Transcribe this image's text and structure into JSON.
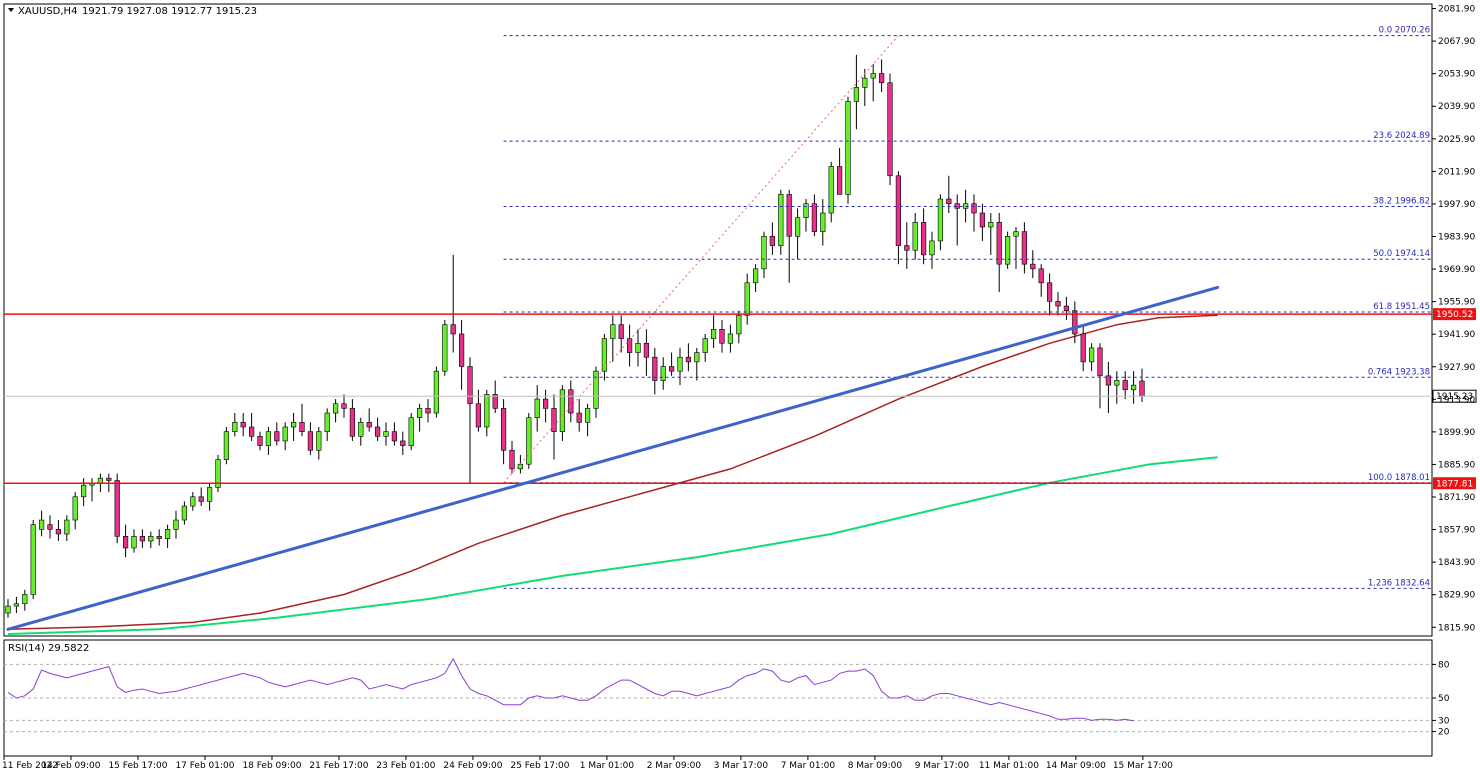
{
  "header": {
    "symbol": "XAUUSD,H4",
    "ohlc": "1921.79 1927.08 1912.77 1915.23"
  },
  "rsi_label": "RSI(14) 29.5822",
  "colors": {
    "bull": "#66ee2a",
    "bear": "#e7308a",
    "wick": "#000000",
    "trendline": "#3d63cc",
    "hline": "#ee1111",
    "fib": "#2b2bb4",
    "ma_fast": "#aa2222",
    "ma_slow": "#11dd77",
    "rsi": "#8a3fd0"
  },
  "chart_data": {
    "type": "candlestick",
    "x_tick_labels": [
      "11 Feb 2022",
      "14 Feb 09:00",
      "15 Feb 17:00",
      "17 Feb 01:00",
      "18 Feb 09:00",
      "21 Feb 17:00",
      "23 Feb 01:00",
      "24 Feb 09:00",
      "25 Feb 17:00",
      "1 Mar 01:00",
      "2 Mar 09:00",
      "3 Mar 17:00",
      "7 Mar 01:00",
      "8 Mar 09:00",
      "9 Mar 17:00",
      "11 Mar 01:00",
      "14 Mar 09:00",
      "15 Mar 17:00"
    ],
    "y_tick_labels": [
      "2081.90",
      "2067.90",
      "2053.90",
      "2039.90",
      "2025.90",
      "2011.90",
      "1997.90",
      "1983.90",
      "1969.90",
      "1955.90",
      "1941.90",
      "1927.90",
      "1913.90",
      "1899.90",
      "1885.90",
      "1871.90",
      "1857.90",
      "1843.90",
      "1829.90",
      "1815.90"
    ],
    "ylim": [
      1813,
      2083
    ],
    "candles": [
      [
        1822,
        1828,
        1820,
        1825
      ],
      [
        1825,
        1829,
        1822,
        1826
      ],
      [
        1826,
        1832,
        1823,
        1830
      ],
      [
        1830,
        1862,
        1828,
        1860
      ],
      [
        1858,
        1866,
        1855,
        1862
      ],
      [
        1860,
        1864,
        1854,
        1858
      ],
      [
        1858,
        1862,
        1853,
        1856
      ],
      [
        1856,
        1864,
        1853,
        1862
      ],
      [
        1862,
        1874,
        1858,
        1872
      ],
      [
        1872,
        1880,
        1868,
        1877
      ],
      [
        1877,
        1880,
        1870,
        1878
      ],
      [
        1878,
        1882,
        1874,
        1880
      ],
      [
        1880,
        1882,
        1874,
        1879
      ],
      [
        1879,
        1882,
        1852,
        1855
      ],
      [
        1855,
        1860,
        1846,
        1850
      ],
      [
        1850,
        1858,
        1848,
        1855
      ],
      [
        1855,
        1858,
        1850,
        1853
      ],
      [
        1853,
        1857,
        1850,
        1855
      ],
      [
        1855,
        1858,
        1851,
        1854
      ],
      [
        1854,
        1860,
        1850,
        1858
      ],
      [
        1858,
        1866,
        1854,
        1862
      ],
      [
        1862,
        1870,
        1860,
        1868
      ],
      [
        1868,
        1874,
        1866,
        1872
      ],
      [
        1872,
        1876,
        1868,
        1870
      ],
      [
        1870,
        1878,
        1866,
        1876
      ],
      [
        1876,
        1890,
        1874,
        1888
      ],
      [
        1888,
        1902,
        1886,
        1900
      ],
      [
        1900,
        1908,
        1898,
        1904
      ],
      [
        1904,
        1908,
        1898,
        1902
      ],
      [
        1902,
        1908,
        1896,
        1898
      ],
      [
        1898,
        1900,
        1892,
        1894
      ],
      [
        1894,
        1902,
        1890,
        1900
      ],
      [
        1900,
        1904,
        1894,
        1896
      ],
      [
        1896,
        1904,
        1892,
        1902
      ],
      [
        1902,
        1908,
        1896,
        1904
      ],
      [
        1904,
        1912,
        1898,
        1900
      ],
      [
        1900,
        1904,
        1890,
        1892
      ],
      [
        1892,
        1902,
        1888,
        1900
      ],
      [
        1900,
        1910,
        1896,
        1908
      ],
      [
        1908,
        1914,
        1904,
        1912
      ],
      [
        1912,
        1916,
        1906,
        1910
      ],
      [
        1910,
        1914,
        1896,
        1898
      ],
      [
        1898,
        1906,
        1894,
        1904
      ],
      [
        1904,
        1910,
        1900,
        1902
      ],
      [
        1902,
        1906,
        1896,
        1898
      ],
      [
        1898,
        1904,
        1894,
        1900
      ],
      [
        1900,
        1904,
        1894,
        1896
      ],
      [
        1896,
        1900,
        1890,
        1894
      ],
      [
        1894,
        1908,
        1892,
        1906
      ],
      [
        1906,
        1912,
        1900,
        1910
      ],
      [
        1910,
        1914,
        1904,
        1908
      ],
      [
        1908,
        1928,
        1906,
        1926
      ],
      [
        1926,
        1948,
        1924,
        1946
      ],
      [
        1946,
        1976,
        1934,
        1942
      ],
      [
        1942,
        1948,
        1918,
        1928
      ],
      [
        1928,
        1932,
        1878,
        1912
      ],
      [
        1912,
        1918,
        1900,
        1902
      ],
      [
        1902,
        1918,
        1898,
        1916
      ],
      [
        1916,
        1922,
        1908,
        1910
      ],
      [
        1910,
        1914,
        1886,
        1892
      ],
      [
        1892,
        1896,
        1882,
        1884
      ],
      [
        1884,
        1890,
        1882,
        1886
      ],
      [
        1886,
        1908,
        1884,
        1906
      ],
      [
        1906,
        1920,
        1900,
        1914
      ],
      [
        1914,
        1918,
        1904,
        1910
      ],
      [
        1910,
        1916,
        1888,
        1900
      ],
      [
        1900,
        1920,
        1896,
        1918
      ],
      [
        1918,
        1922,
        1904,
        1908
      ],
      [
        1908,
        1914,
        1900,
        1904
      ],
      [
        1904,
        1912,
        1898,
        1910
      ],
      [
        1910,
        1928,
        1906,
        1926
      ],
      [
        1926,
        1942,
        1922,
        1940
      ],
      [
        1940,
        1950,
        1930,
        1946
      ],
      [
        1946,
        1950,
        1934,
        1940
      ],
      [
        1940,
        1946,
        1928,
        1934
      ],
      [
        1934,
        1944,
        1928,
        1938
      ],
      [
        1938,
        1944,
        1924,
        1932
      ],
      [
        1932,
        1936,
        1916,
        1922
      ],
      [
        1922,
        1932,
        1918,
        1928
      ],
      [
        1928,
        1934,
        1924,
        1926
      ],
      [
        1926,
        1936,
        1920,
        1932
      ],
      [
        1932,
        1938,
        1926,
        1930
      ],
      [
        1930,
        1936,
        1922,
        1934
      ],
      [
        1934,
        1942,
        1930,
        1940
      ],
      [
        1940,
        1950,
        1936,
        1944
      ],
      [
        1944,
        1948,
        1934,
        1938
      ],
      [
        1938,
        1946,
        1934,
        1942
      ],
      [
        1942,
        1952,
        1938,
        1950
      ],
      [
        1950,
        1968,
        1946,
        1964
      ],
      [
        1964,
        1972,
        1960,
        1970
      ],
      [
        1970,
        1986,
        1966,
        1984
      ],
      [
        1984,
        1990,
        1976,
        1980
      ],
      [
        1980,
        2004,
        1976,
        2002
      ],
      [
        2002,
        2004,
        1964,
        1984
      ],
      [
        1984,
        1996,
        1974,
        1992
      ],
      [
        1992,
        2000,
        1986,
        1998
      ],
      [
        1998,
        2002,
        1984,
        1986
      ],
      [
        1986,
        2000,
        1980,
        1994
      ],
      [
        1994,
        2016,
        1990,
        2014
      ],
      [
        2014,
        2022,
        2004,
        2002
      ],
      [
        2002,
        2044,
        1998,
        2042
      ],
      [
        2042,
        2062,
        2030,
        2048
      ],
      [
        2048,
        2056,
        2040,
        2052
      ],
      [
        2052,
        2058,
        2042,
        2054
      ],
      [
        2054,
        2060,
        2046,
        2050
      ],
      [
        2050,
        2054,
        2006,
        2010
      ],
      [
        2010,
        2012,
        1972,
        1980
      ],
      [
        1980,
        1990,
        1970,
        1978
      ],
      [
        1978,
        1994,
        1974,
        1990
      ],
      [
        1990,
        1996,
        1972,
        1976
      ],
      [
        1976,
        1986,
        1970,
        1982
      ],
      [
        1982,
        2002,
        1978,
        2000
      ],
      [
        2000,
        2010,
        1994,
        1998
      ],
      [
        1998,
        2002,
        1980,
        1996
      ],
      [
        1996,
        2004,
        1990,
        1998
      ],
      [
        1998,
        2002,
        1986,
        1994
      ],
      [
        1994,
        1998,
        1982,
        1988
      ],
      [
        1988,
        1994,
        1976,
        1990
      ],
      [
        1990,
        1994,
        1960,
        1972
      ],
      [
        1972,
        1986,
        1970,
        1984
      ],
      [
        1984,
        1988,
        1970,
        1986
      ],
      [
        1986,
        1990,
        1968,
        1972
      ],
      [
        1972,
        1978,
        1966,
        1970
      ],
      [
        1970,
        1972,
        1958,
        1964
      ],
      [
        1964,
        1968,
        1950,
        1956
      ],
      [
        1956,
        1960,
        1950,
        1954
      ],
      [
        1954,
        1958,
        1948,
        1952
      ],
      [
        1952,
        1956,
        1938,
        1942
      ],
      [
        1942,
        1946,
        1926,
        1930
      ],
      [
        1930,
        1938,
        1926,
        1936
      ],
      [
        1936,
        1938,
        1910,
        1924
      ],
      [
        1924,
        1930,
        1908,
        1920
      ],
      [
        1920,
        1926,
        1912,
        1922
      ],
      [
        1922,
        1926,
        1914,
        1918
      ],
      [
        1918,
        1926,
        1912,
        1920
      ],
      [
        1921.79,
        1927.08,
        1912.77,
        1915.23
      ]
    ],
    "ma_fast": [
      [
        0,
        1815
      ],
      [
        10,
        1816
      ],
      [
        22,
        1818
      ],
      [
        30,
        1822
      ],
      [
        40,
        1830
      ],
      [
        48,
        1840
      ],
      [
        56,
        1852
      ],
      [
        66,
        1864
      ],
      [
        76,
        1874
      ],
      [
        86,
        1884
      ],
      [
        96,
        1898
      ],
      [
        106,
        1914
      ],
      [
        116,
        1928
      ],
      [
        124,
        1938
      ],
      [
        132,
        1946
      ],
      [
        137,
        1949
      ],
      [
        144,
        1950
      ]
    ],
    "ma_slow": [
      [
        0,
        1813
      ],
      [
        18,
        1815
      ],
      [
        32,
        1820
      ],
      [
        50,
        1828
      ],
      [
        66,
        1838
      ],
      [
        82,
        1846
      ],
      [
        98,
        1856
      ],
      [
        112,
        1868
      ],
      [
        124,
        1878
      ],
      [
        136,
        1886
      ],
      [
        144,
        1889
      ]
    ],
    "trendline": [
      [
        0,
        1815
      ],
      [
        144,
        1962
      ]
    ],
    "horizontal_levels": [
      {
        "label": "1950.52",
        "value": 1950.52
      },
      {
        "label": "1877.81",
        "value": 1877.81
      }
    ],
    "current_price": {
      "label": "1915.23",
      "value": 1915.23
    },
    "fib_levels": [
      {
        "label": "0.0 2070.26",
        "value": 2070.26
      },
      {
        "label": "23.6 2024.89",
        "value": 2024.89
      },
      {
        "label": "38.2 1996.82",
        "value": 1996.82
      },
      {
        "label": "50.0 1974.14",
        "value": 1974.14
      },
      {
        "label": "61.8 1951.45",
        "value": 1951.45
      },
      {
        "label": "0.764 1923.38",
        "value": 1923.38
      },
      {
        "label": "100.0 1878.01",
        "value": 1878.01
      },
      {
        "label": "1.236 1832.64",
        "value": 1832.64
      }
    ],
    "fib_anchor": {
      "from": [
        59,
        1878.01
      ],
      "to": [
        106,
        2070.26
      ]
    },
    "rsi": {
      "ylim": [
        0,
        100
      ],
      "tick_labels": [
        "80",
        "50",
        "30",
        "20"
      ],
      "tick_values": [
        80,
        50,
        30,
        20
      ],
      "values": [
        55,
        50,
        52,
        58,
        75,
        72,
        70,
        68,
        70,
        72,
        74,
        76,
        78,
        60,
        55,
        57,
        58,
        56,
        54,
        55,
        56,
        58,
        60,
        62,
        64,
        66,
        68,
        70,
        72,
        70,
        68,
        64,
        62,
        60,
        62,
        64,
        66,
        64,
        62,
        64,
        66,
        68,
        66,
        58,
        60,
        62,
        60,
        58,
        62,
        64,
        66,
        68,
        72,
        85,
        70,
        58,
        54,
        52,
        48,
        44,
        44,
        44,
        50,
        52,
        50,
        50,
        52,
        50,
        48,
        48,
        52,
        58,
        62,
        66,
        66,
        62,
        58,
        54,
        52,
        56,
        56,
        54,
        52,
        54,
        56,
        58,
        60,
        66,
        70,
        72,
        76,
        74,
        66,
        64,
        68,
        70,
        62,
        64,
        66,
        72,
        74,
        74,
        76,
        70,
        56,
        50,
        50,
        52,
        48,
        48,
        52,
        54,
        54,
        52,
        50,
        48,
        46,
        44,
        46,
        44,
        42,
        40,
        38,
        36,
        34,
        31,
        31,
        32,
        32,
        30,
        31,
        31,
        30,
        31,
        29.58
      ]
    }
  }
}
